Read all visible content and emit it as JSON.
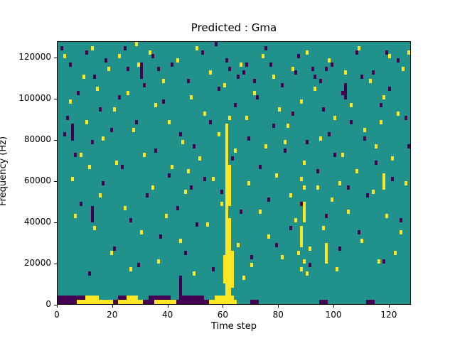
{
  "chart_data": {
    "type": "heatmap",
    "title": "Predicted : Gma",
    "xlabel": "Time step",
    "ylabel": "Frequency (Hz)",
    "x_range": [
      0,
      128
    ],
    "y_range": [
      0,
      128000
    ],
    "x_ticks": [
      0,
      20,
      40,
      60,
      80,
      100,
      120
    ],
    "y_ticks": [
      0,
      20000,
      40000,
      60000,
      80000,
      100000,
      120000
    ],
    "grid": {
      "cols": 128,
      "rows": 64,
      "hz_per_row": 2000
    },
    "colors": {
      "background": "#21918c",
      "high": "#fde725",
      "low": "#440154"
    },
    "legend": "none",
    "notes": "Sparse binary-like spectrogram mask: teal background, scattered yellow (high) and dark-purple (low) cells; strong yellow vertical streak near time step 61-63 from ~2 kHz to ~86 kHz; dense mixed yellow/purple band along the bottom rows (0-4 kHz) for time steps 0-64.",
    "vruns": [
      {
        "t": 61,
        "b0": 2,
        "b1": 43,
        "c": "y"
      },
      {
        "t": 62,
        "b0": 1,
        "b1": 20,
        "c": "y"
      },
      {
        "t": 62,
        "b0": 24,
        "b1": 33,
        "c": "y"
      },
      {
        "t": 63,
        "b0": 4,
        "b1": 12,
        "c": "y"
      },
      {
        "t": 60,
        "b0": 5,
        "b1": 11,
        "c": "y"
      },
      {
        "t": 88,
        "b0": 14,
        "b1": 18,
        "c": "y"
      },
      {
        "t": 89,
        "b0": 20,
        "b1": 24,
        "c": "y"
      },
      {
        "t": 97,
        "b0": 10,
        "b1": 14,
        "c": "y"
      },
      {
        "t": 118,
        "b0": 28,
        "b1": 31,
        "c": "y"
      },
      {
        "t": 12,
        "b0": 20,
        "b1": 23,
        "c": "p"
      },
      {
        "t": 30,
        "b0": 55,
        "b1": 58,
        "c": "p"
      },
      {
        "t": 44,
        "b0": 2,
        "b1": 6,
        "c": "p"
      },
      {
        "t": 5,
        "b0": 40,
        "b1": 43,
        "c": "p"
      },
      {
        "t": 104,
        "b0": 50,
        "b1": 53,
        "c": "p"
      }
    ],
    "hruns": [
      {
        "b": 1,
        "t0": 0,
        "t1": 9,
        "c": "p"
      },
      {
        "b": 0,
        "t0": 0,
        "t1": 6,
        "c": "p"
      },
      {
        "b": 0,
        "t0": 7,
        "t1": 19,
        "c": "y"
      },
      {
        "b": 1,
        "t0": 10,
        "t1": 14,
        "c": "y"
      },
      {
        "b": 0,
        "t0": 20,
        "t1": 21,
        "c": "p"
      },
      {
        "b": 0,
        "t0": 22,
        "t1": 30,
        "c": "y"
      },
      {
        "b": 1,
        "t0": 22,
        "t1": 24,
        "c": "p"
      },
      {
        "b": 1,
        "t0": 25,
        "t1": 28,
        "c": "y"
      },
      {
        "b": 0,
        "t0": 31,
        "t1": 34,
        "c": "p"
      },
      {
        "b": 0,
        "t0": 35,
        "t1": 42,
        "c": "y"
      },
      {
        "b": 1,
        "t0": 33,
        "t1": 40,
        "c": "p"
      },
      {
        "b": 0,
        "t0": 43,
        "t1": 54,
        "c": "p"
      },
      {
        "b": 1,
        "t0": 44,
        "t1": 52,
        "c": "p"
      },
      {
        "b": 0,
        "t0": 55,
        "t1": 60,
        "c": "y"
      },
      {
        "b": 1,
        "t0": 57,
        "t1": 63,
        "c": "y"
      },
      {
        "b": 0,
        "t0": 61,
        "t1": 64,
        "c": "y"
      },
      {
        "b": 0,
        "t0": 70,
        "t1": 72,
        "c": "p"
      },
      {
        "b": 0,
        "t0": 95,
        "t1": 97,
        "c": "p"
      },
      {
        "b": 0,
        "t0": 112,
        "t1": 114,
        "c": "p"
      }
    ],
    "points": {
      "yellow": [
        [
          2,
          60
        ],
        [
          4,
          49
        ],
        [
          5,
          30
        ],
        [
          6,
          21
        ],
        [
          9,
          55
        ],
        [
          10,
          44
        ],
        [
          11,
          33
        ],
        [
          12,
          62
        ],
        [
          14,
          52
        ],
        [
          15,
          26
        ],
        [
          16,
          40
        ],
        [
          18,
          57
        ],
        [
          19,
          12
        ],
        [
          20,
          47
        ],
        [
          21,
          34
        ],
        [
          22,
          60
        ],
        [
          24,
          23
        ],
        [
          25,
          51
        ],
        [
          26,
          8
        ],
        [
          27,
          42
        ],
        [
          29,
          58
        ],
        [
          30,
          17
        ],
        [
          31,
          36
        ],
        [
          33,
          61
        ],
        [
          34,
          28
        ],
        [
          35,
          48
        ],
        [
          36,
          10
        ],
        [
          38,
          54
        ],
        [
          39,
          21
        ],
        [
          40,
          44
        ],
        [
          41,
          33
        ],
        [
          43,
          59
        ],
        [
          44,
          15
        ],
        [
          45,
          39
        ],
        [
          46,
          27
        ],
        [
          48,
          50
        ],
        [
          49,
          7
        ],
        [
          50,
          62
        ],
        [
          51,
          35
        ],
        [
          53,
          46
        ],
        [
          54,
          19
        ],
        [
          55,
          56
        ],
        [
          56,
          30
        ],
        [
          58,
          41
        ],
        [
          59,
          24
        ],
        [
          60,
          53
        ],
        [
          64,
          37
        ],
        [
          65,
          14
        ],
        [
          66,
          58
        ],
        [
          68,
          45
        ],
        [
          69,
          29
        ],
        [
          70,
          9
        ],
        [
          71,
          51
        ],
        [
          73,
          22
        ],
        [
          74,
          60
        ],
        [
          75,
          38
        ],
        [
          76,
          16
        ],
        [
          78,
          55
        ],
        [
          79,
          31
        ],
        [
          80,
          47
        ],
        [
          81,
          11
        ],
        [
          83,
          43
        ],
        [
          84,
          26
        ],
        [
          85,
          57
        ],
        [
          86,
          20
        ],
        [
          88,
          49
        ],
        [
          89,
          34
        ],
        [
          90,
          61
        ],
        [
          91,
          13
        ],
        [
          93,
          52
        ],
        [
          94,
          28
        ],
        [
          95,
          40
        ],
        [
          96,
          18
        ],
        [
          98,
          59
        ],
        [
          99,
          25
        ],
        [
          100,
          45
        ],
        [
          101,
          8
        ],
        [
          103,
          36
        ],
        [
          104,
          56
        ],
        [
          105,
          22
        ],
        [
          106,
          48
        ],
        [
          108,
          32
        ],
        [
          109,
          62
        ],
        [
          110,
          15
        ],
        [
          111,
          42
        ],
        [
          113,
          54
        ],
        [
          114,
          27
        ],
        [
          115,
          38
        ],
        [
          116,
          10
        ],
        [
          118,
          50
        ],
        [
          119,
          21
        ],
        [
          120,
          60
        ],
        [
          121,
          35
        ],
        [
          123,
          46
        ],
        [
          124,
          17
        ],
        [
          125,
          57
        ],
        [
          126,
          29
        ],
        [
          127,
          61
        ],
        [
          87,
          12
        ],
        [
          88,
          8
        ],
        [
          89,
          10
        ],
        [
          90,
          7
        ],
        [
          88,
          30
        ],
        [
          89,
          28
        ],
        [
          62,
          45
        ],
        [
          8,
          36
        ],
        [
          13,
          18
        ],
        [
          28,
          63
        ],
        [
          47,
          32
        ],
        [
          67,
          6
        ],
        [
          82,
          39
        ],
        [
          102,
          29
        ],
        [
          117,
          44
        ],
        [
          122,
          12
        ]
      ],
      "purple": [
        [
          1,
          62
        ],
        [
          3,
          45
        ],
        [
          4,
          58
        ],
        [
          6,
          36
        ],
        [
          7,
          51
        ],
        [
          8,
          24
        ],
        [
          10,
          61
        ],
        [
          12,
          39
        ],
        [
          13,
          55
        ],
        [
          15,
          47
        ],
        [
          16,
          29
        ],
        [
          17,
          59
        ],
        [
          19,
          42
        ],
        [
          20,
          13
        ],
        [
          22,
          50
        ],
        [
          23,
          33
        ],
        [
          25,
          57
        ],
        [
          26,
          20
        ],
        [
          28,
          44
        ],
        [
          29,
          9
        ],
        [
          31,
          53
        ],
        [
          32,
          26
        ],
        [
          34,
          60
        ],
        [
          35,
          37
        ],
        [
          37,
          16
        ],
        [
          38,
          49
        ],
        [
          40,
          31
        ],
        [
          41,
          58
        ],
        [
          43,
          23
        ],
        [
          44,
          41
        ],
        [
          46,
          12
        ],
        [
          47,
          54
        ],
        [
          49,
          38
        ],
        [
          50,
          19
        ],
        [
          52,
          61
        ],
        [
          53,
          30
        ],
        [
          55,
          44
        ],
        [
          56,
          8
        ],
        [
          58,
          52
        ],
        [
          59,
          27
        ],
        [
          61,
          59
        ],
        [
          63,
          35
        ],
        [
          64,
          48
        ],
        [
          66,
          22
        ],
        [
          67,
          56
        ],
        [
          69,
          40
        ],
        [
          70,
          11
        ],
        [
          72,
          50
        ],
        [
          73,
          33
        ],
        [
          75,
          62
        ],
        [
          76,
          25
        ],
        [
          78,
          43
        ],
        [
          79,
          14
        ],
        [
          81,
          53
        ],
        [
          82,
          37
        ],
        [
          84,
          18
        ],
        [
          85,
          46
        ],
        [
          87,
          60
        ],
        [
          88,
          24
        ],
        [
          90,
          39
        ],
        [
          91,
          9
        ],
        [
          93,
          55
        ],
        [
          94,
          32
        ],
        [
          96,
          47
        ],
        [
          97,
          21
        ],
        [
          99,
          58
        ],
        [
          100,
          36
        ],
        [
          102,
          13
        ],
        [
          103,
          51
        ],
        [
          105,
          28
        ],
        [
          106,
          44
        ],
        [
          108,
          61
        ],
        [
          109,
          17
        ],
        [
          111,
          40
        ],
        [
          112,
          26
        ],
        [
          114,
          56
        ],
        [
          115,
          34
        ],
        [
          117,
          48
        ],
        [
          118,
          10
        ],
        [
          120,
          52
        ],
        [
          121,
          30
        ],
        [
          123,
          59
        ],
        [
          124,
          20
        ],
        [
          126,
          45
        ],
        [
          127,
          38
        ],
        [
          62,
          57
        ],
        [
          65,
          55
        ],
        [
          68,
          58
        ],
        [
          71,
          54
        ],
        [
          86,
          56
        ],
        [
          92,
          57
        ],
        [
          95,
          54
        ],
        [
          97,
          57
        ],
        [
          2,
          41
        ],
        [
          11,
          7
        ],
        [
          24,
          62
        ],
        [
          36,
          57
        ],
        [
          48,
          28
        ],
        [
          57,
          63
        ],
        [
          77,
          58
        ],
        [
          98,
          41
        ],
        [
          110,
          55
        ],
        [
          119,
          61
        ]
      ]
    }
  }
}
